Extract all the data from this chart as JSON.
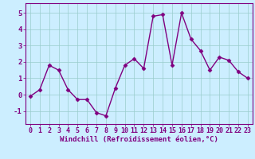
{
  "x": [
    0,
    1,
    2,
    3,
    4,
    5,
    6,
    7,
    8,
    9,
    10,
    11,
    12,
    13,
    14,
    15,
    16,
    17,
    18,
    19,
    20,
    21,
    22,
    23
  ],
  "y": [
    -0.1,
    0.3,
    1.8,
    1.5,
    0.3,
    -0.3,
    -0.3,
    -1.1,
    -1.3,
    0.4,
    1.8,
    2.2,
    1.6,
    4.8,
    4.9,
    1.8,
    5.0,
    3.4,
    2.7,
    1.5,
    2.3,
    2.1,
    1.4,
    1.0
  ],
  "line_color": "#800080",
  "marker": "D",
  "marker_size": 2.5,
  "bg_color": "#cceeff",
  "grid_color": "#99cccc",
  "xlabel": "Windchill (Refroidissement éolien,°C)",
  "ylim": [
    -1.8,
    5.6
  ],
  "xlim": [
    -0.5,
    23.5
  ],
  "yticks": [
    -1,
    0,
    1,
    2,
    3,
    4,
    5
  ],
  "xticks": [
    0,
    1,
    2,
    3,
    4,
    5,
    6,
    7,
    8,
    9,
    10,
    11,
    12,
    13,
    14,
    15,
    16,
    17,
    18,
    19,
    20,
    21,
    22,
    23
  ],
  "tick_color": "#800080",
  "tick_fontsize": 6.0,
  "xlabel_fontsize": 6.5,
  "spine_color": "#800080",
  "line_width": 1.0
}
